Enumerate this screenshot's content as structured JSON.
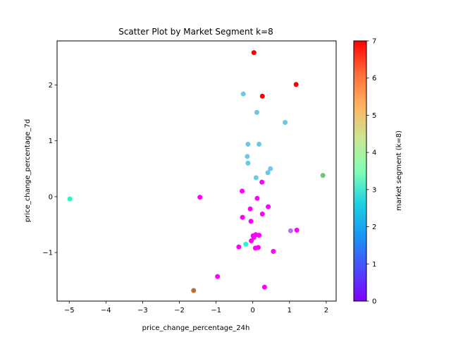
{
  "chart_data": {
    "type": "scatter",
    "title": "Scatter Plot by Market Segment k=8",
    "xlabel": "price_change_percentage_24h",
    "ylabel": "price_change_percentage_7d",
    "xlim": [
      -5.33,
      2.27
    ],
    "ylim": [
      -1.87,
      2.79
    ],
    "xticks": [
      -5,
      -4,
      -3,
      -2,
      -1,
      0,
      1,
      2
    ],
    "yticks": [
      -1,
      0,
      1,
      2
    ],
    "colorbar": {
      "label": "market segment (k=8)",
      "range": [
        0,
        7
      ],
      "ticks": [
        0,
        1,
        2,
        3,
        4,
        5,
        6,
        7
      ],
      "colormap": "rainbow"
    },
    "grid": false,
    "points": [
      {
        "x": 0.03,
        "y": 2.58,
        "segment": 7
      },
      {
        "x": 1.18,
        "y": 2.01,
        "segment": 7
      },
      {
        "x": 0.26,
        "y": 1.8,
        "segment": 7
      },
      {
        "x": -0.26,
        "y": 1.84,
        "segment": 2
      },
      {
        "x": 0.11,
        "y": 1.51,
        "segment": 2
      },
      {
        "x": 0.88,
        "y": 1.33,
        "segment": 2
      },
      {
        "x": -0.13,
        "y": 0.94,
        "segment": 2
      },
      {
        "x": 0.17,
        "y": 0.94,
        "segment": 2
      },
      {
        "x": -0.15,
        "y": 0.72,
        "segment": 2
      },
      {
        "x": -0.13,
        "y": 0.6,
        "segment": 2
      },
      {
        "x": 0.48,
        "y": 0.5,
        "segment": 2
      },
      {
        "x": 0.41,
        "y": 0.43,
        "segment": 2
      },
      {
        "x": 0.09,
        "y": 0.34,
        "segment": 2
      },
      {
        "x": 1.91,
        "y": 0.38,
        "segment": 5
      },
      {
        "x": -4.98,
        "y": -0.04,
        "segment": 3
      },
      {
        "x": 0.25,
        "y": 0.26,
        "segment": 0
      },
      {
        "x": -0.29,
        "y": 0.1,
        "segment": 0
      },
      {
        "x": -1.44,
        "y": -0.01,
        "segment": 0
      },
      {
        "x": 0.12,
        "y": -0.03,
        "segment": 0
      },
      {
        "x": 0.42,
        "y": -0.18,
        "segment": 0
      },
      {
        "x": -0.07,
        "y": -0.22,
        "segment": 0
      },
      {
        "x": 0.26,
        "y": -0.31,
        "segment": 0
      },
      {
        "x": -0.28,
        "y": -0.37,
        "segment": 0
      },
      {
        "x": -0.05,
        "y": -0.44,
        "segment": 0
      },
      {
        "x": 1.03,
        "y": -0.61,
        "segment": 1
      },
      {
        "x": 1.2,
        "y": -0.6,
        "segment": 0
      },
      {
        "x": 0.08,
        "y": -0.68,
        "segment": 0
      },
      {
        "x": 0.01,
        "y": -0.7,
        "segment": 0
      },
      {
        "x": 0.17,
        "y": -0.69,
        "segment": 0
      },
      {
        "x": 0.03,
        "y": -0.73,
        "segment": 0
      },
      {
        "x": -0.04,
        "y": -0.79,
        "segment": 0
      },
      {
        "x": -0.19,
        "y": -0.85,
        "segment": 3
      },
      {
        "x": -0.38,
        "y": -0.9,
        "segment": 0
      },
      {
        "x": 0.07,
        "y": -0.92,
        "segment": 0
      },
      {
        "x": 0.15,
        "y": -0.91,
        "segment": 0
      },
      {
        "x": 0.56,
        "y": -0.98,
        "segment": 0
      },
      {
        "x": -0.96,
        "y": -1.43,
        "segment": 0
      },
      {
        "x": 0.32,
        "y": -1.62,
        "segment": 0
      },
      {
        "x": -1.61,
        "y": -1.68,
        "segment": 6
      }
    ]
  }
}
